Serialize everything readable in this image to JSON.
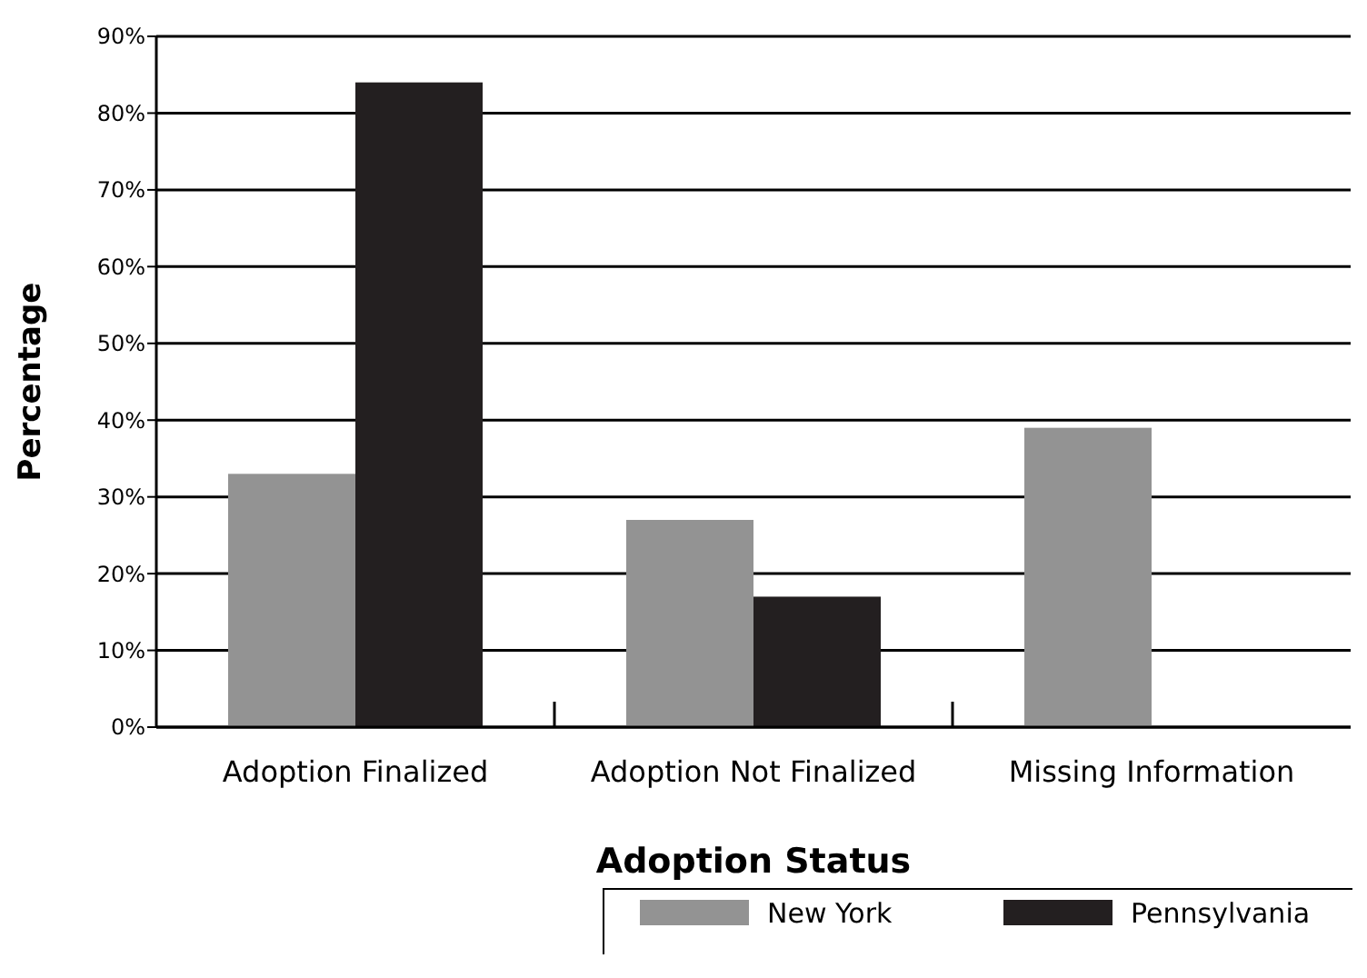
{
  "chart_data": {
    "type": "bar",
    "xlabel": "Adoption Status",
    "ylabel": "Percentage",
    "categories": [
      "Adoption Finalized",
      "Adoption Not Finalized",
      "Missing Information"
    ],
    "series": [
      {
        "name": "New York",
        "color": "#939393",
        "values": [
          33,
          27,
          39
        ]
      },
      {
        "name": "Pennsylvania",
        "color": "#231f20",
        "values": [
          84,
          17,
          null
        ]
      }
    ],
    "ylim": [
      0,
      90
    ],
    "yticks": [
      {
        "value": 0,
        "label": "0%"
      },
      {
        "value": 10,
        "label": "10%"
      },
      {
        "value": 20,
        "label": "20%"
      },
      {
        "value": 30,
        "label": "30%"
      },
      {
        "value": 40,
        "label": "40%"
      },
      {
        "value": 50,
        "label": "50%"
      },
      {
        "value": 60,
        "label": "60%"
      },
      {
        "value": 70,
        "label": "70%"
      },
      {
        "value": 80,
        "label": "80%"
      },
      {
        "value": 90,
        "label": "90%"
      }
    ],
    "grid": "y",
    "legend": "bottom right"
  }
}
